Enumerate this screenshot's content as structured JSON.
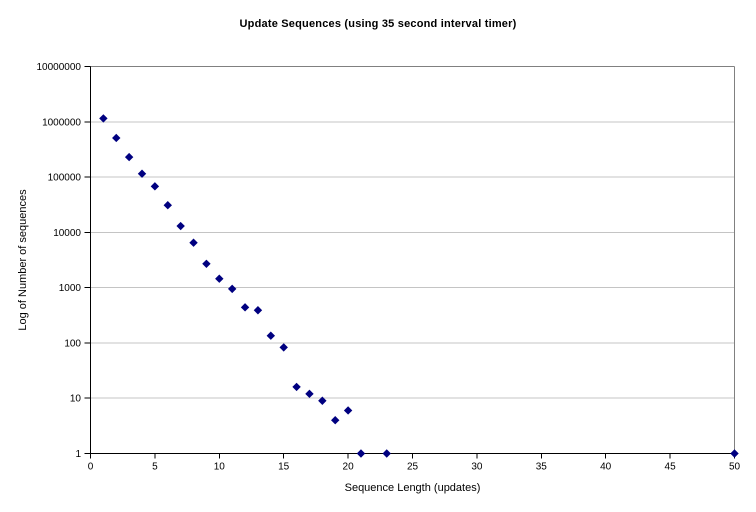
{
  "chart_data": {
    "type": "scatter",
    "title": "Update Sequences (using 35 second interval timer)",
    "xlabel": "Sequence Length (updates)",
    "ylabel": "Log of Number of sequences",
    "y_scale": "log",
    "xlim": [
      0,
      50
    ],
    "ylim": [
      1,
      10000000
    ],
    "x_ticks": [
      0,
      5,
      10,
      15,
      20,
      25,
      30,
      35,
      40,
      45,
      50
    ],
    "y_ticks": [
      1,
      10,
      100,
      1000,
      10000,
      100000,
      1000000,
      10000000
    ],
    "grid": "horizontal-major",
    "legend": "none",
    "marker": {
      "shape": "diamond",
      "color": "#000080",
      "size": 7
    },
    "series": [
      {
        "name": "update-sequences",
        "points": [
          [
            1,
            1150000
          ],
          [
            2,
            510000
          ],
          [
            3,
            230000
          ],
          [
            4,
            115000
          ],
          [
            5,
            68000
          ],
          [
            6,
            31000
          ],
          [
            7,
            13000
          ],
          [
            8,
            6500
          ],
          [
            9,
            2700
          ],
          [
            10,
            1450
          ],
          [
            11,
            950
          ],
          [
            12,
            440
          ],
          [
            13,
            390
          ],
          [
            14,
            135
          ],
          [
            15,
            83
          ],
          [
            16,
            16
          ],
          [
            17,
            12
          ],
          [
            18,
            9
          ],
          [
            19,
            4
          ],
          [
            20,
            6
          ],
          [
            21,
            1
          ],
          [
            23,
            1
          ],
          [
            50,
            1
          ]
        ]
      }
    ],
    "colors": {
      "background": "#ffffff",
      "gridline": "#c4c4c4",
      "plot_border": "#808080",
      "axis": "#000000",
      "marker": "#000080",
      "text": "#000000"
    }
  }
}
